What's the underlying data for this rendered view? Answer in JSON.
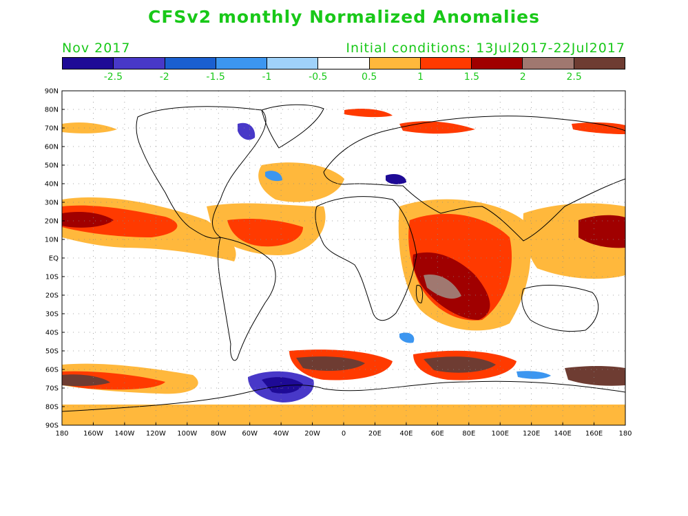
{
  "header": {
    "title": "CFSv2 monthly Normalized Anomalies",
    "valid_month": "Nov 2017",
    "initial_conditions": "Initial conditions: 13Jul2017-22Jul2017"
  },
  "colorbar": {
    "colors": [
      "#1e0a96",
      "#4838c8",
      "#1a5fd0",
      "#3c96f0",
      "#a0d2fa",
      "#ffffff",
      "#ffb83c",
      "#ff3a00",
      "#a00000",
      "#a07870",
      "#6e3c32"
    ],
    "labels": [
      "-2.5",
      "-2",
      "-1.5",
      "-1",
      "-0.5",
      "0.5",
      "1",
      "1.5",
      "2",
      "2.5"
    ]
  },
  "axes": {
    "lat_labels": [
      "90N",
      "80N",
      "70N",
      "60N",
      "50N",
      "40N",
      "30N",
      "20N",
      "10N",
      "EQ",
      "10S",
      "20S",
      "30S",
      "40S",
      "50S",
      "60S",
      "70S",
      "80S",
      "90S"
    ],
    "lon_labels": [
      "180",
      "160W",
      "140W",
      "120W",
      "100W",
      "80W",
      "60W",
      "40W",
      "20W",
      "0",
      "20E",
      "40E",
      "60E",
      "80E",
      "100E",
      "120E",
      "140E",
      "160E",
      "180"
    ]
  }
}
